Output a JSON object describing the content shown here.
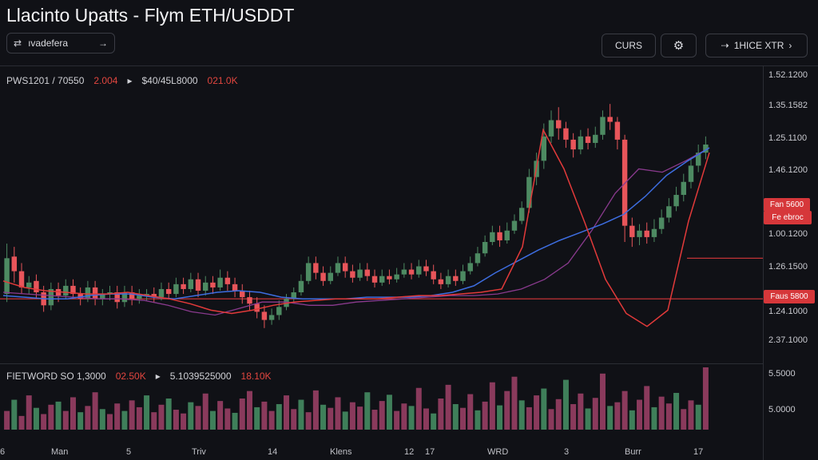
{
  "header": {
    "title": "Llacinto Upatts - Flym ETH/USDDT",
    "symbol_label": "ıvadefera",
    "symbol_icon": "exchange-icon",
    "curs_label": "CURS",
    "gear_icon": "gear-icon",
    "timeframe_label": "1HICE XTR",
    "timeframe_icon": "arrow-icon",
    "timeframe_chevron": "chevron-right-icon"
  },
  "main_legend": {
    "pair": "PWS1201 / 70550",
    "change": "2.004",
    "ohlc": "$40/45L8000",
    "delta": "021.0K"
  },
  "volume_legend": {
    "label": "FIETWORD SO 1,3000",
    "value1": "02.50K",
    "value2": "5.1039525000",
    "value3": "18.10K"
  },
  "price_axis": {
    "ticks": [
      "1.52.1200",
      "1.35.1582",
      "1.25.1100",
      "1.46.1200",
      "1.00.1200",
      "1.26.1500",
      "1.24.1000",
      "2.37.1000"
    ],
    "volume_ticks": [
      "5.5000",
      "5.0000"
    ]
  },
  "price_tags": {
    "upper": "Fan 5600",
    "upper2": "Fe ebroc",
    "lower": "Faus 5800"
  },
  "time_axis": {
    "labels": [
      "6",
      "Man",
      "5",
      "Triv",
      "14",
      "Klens",
      "12",
      "17",
      "WRD",
      "3",
      "Burr",
      "17"
    ]
  },
  "colors": {
    "up": "#4d8a62",
    "down": "#e8555a",
    "ma_blue": "#3d6de0",
    "ma_red": "#e23a3a",
    "ma_magenta": "#8a3a8e",
    "volume_up": "#3f7f5a",
    "volume_down": "#8a3a5c",
    "price_line": "#d6373a"
  },
  "chart_data": {
    "type": "candlestick",
    "candles_o_c_h_l": [
      [
        1.243,
        1.265,
        1.274,
        1.238
      ],
      [
        1.266,
        1.257,
        1.272,
        1.25
      ],
      [
        1.257,
        1.247,
        1.262,
        1.243
      ],
      [
        1.247,
        1.25,
        1.254,
        1.243
      ],
      [
        1.251,
        1.244,
        1.255,
        1.24
      ],
      [
        1.244,
        1.236,
        1.248,
        1.232
      ],
      [
        1.236,
        1.246,
        1.25,
        1.233
      ],
      [
        1.246,
        1.242,
        1.25,
        1.238
      ],
      [
        1.242,
        1.248,
        1.252,
        1.24
      ],
      [
        1.248,
        1.243,
        1.252,
        1.24
      ],
      [
        1.243,
        1.24,
        1.247,
        1.236
      ],
      [
        1.24,
        1.247,
        1.251,
        1.238
      ],
      [
        1.247,
        1.24,
        1.251,
        1.236
      ],
      [
        1.24,
        1.243,
        1.246,
        1.236
      ],
      [
        1.243,
        1.244,
        1.248,
        1.239
      ],
      [
        1.244,
        1.238,
        1.248,
        1.234
      ],
      [
        1.238,
        1.244,
        1.248,
        1.235
      ],
      [
        1.244,
        1.24,
        1.248,
        1.236
      ],
      [
        1.24,
        1.242,
        1.246,
        1.237
      ],
      [
        1.242,
        1.243,
        1.246,
        1.239
      ],
      [
        1.243,
        1.241,
        1.247,
        1.238
      ],
      [
        1.241,
        1.246,
        1.25,
        1.239
      ],
      [
        1.246,
        1.243,
        1.25,
        1.24
      ],
      [
        1.243,
        1.249,
        1.253,
        1.241
      ],
      [
        1.249,
        1.246,
        1.253,
        1.243
      ],
      [
        1.246,
        1.252,
        1.256,
        1.244
      ],
      [
        1.252,
        1.245,
        1.256,
        1.241
      ],
      [
        1.245,
        1.25,
        1.254,
        1.242
      ],
      [
        1.25,
        1.247,
        1.254,
        1.243
      ],
      [
        1.247,
        1.253,
        1.258,
        1.245
      ],
      [
        1.253,
        1.249,
        1.257,
        1.245
      ],
      [
        1.249,
        1.245,
        1.253,
        1.241
      ],
      [
        1.245,
        1.241,
        1.249,
        1.237
      ],
      [
        1.241,
        1.237,
        1.245,
        1.233
      ],
      [
        1.237,
        1.232,
        1.241,
        1.228
      ],
      [
        1.232,
        1.227,
        1.236,
        1.222
      ],
      [
        1.227,
        1.23,
        1.234,
        1.224
      ],
      [
        1.23,
        1.235,
        1.239,
        1.227
      ],
      [
        1.235,
        1.24,
        1.243,
        1.233
      ],
      [
        1.24,
        1.244,
        1.247,
        1.238
      ],
      [
        1.244,
        1.251,
        1.255,
        1.242
      ],
      [
        1.251,
        1.262,
        1.266,
        1.249
      ],
      [
        1.262,
        1.256,
        1.266,
        1.252
      ],
      [
        1.256,
        1.251,
        1.26,
        1.248
      ],
      [
        1.251,
        1.256,
        1.26,
        1.249
      ],
      [
        1.256,
        1.262,
        1.266,
        1.254
      ],
      [
        1.262,
        1.257,
        1.266,
        1.253
      ],
      [
        1.257,
        1.253,
        1.261,
        1.25
      ],
      [
        1.253,
        1.258,
        1.262,
        1.251
      ],
      [
        1.258,
        1.254,
        1.262,
        1.251
      ],
      [
        1.254,
        1.25,
        1.258,
        1.247
      ],
      [
        1.25,
        1.254,
        1.258,
        1.248
      ],
      [
        1.254,
        1.252,
        1.258,
        1.249
      ],
      [
        1.252,
        1.255,
        1.259,
        1.25
      ],
      [
        1.255,
        1.258,
        1.262,
        1.253
      ],
      [
        1.258,
        1.255,
        1.262,
        1.252
      ],
      [
        1.255,
        1.26,
        1.264,
        1.253
      ],
      [
        1.26,
        1.257,
        1.264,
        1.254
      ],
      [
        1.257,
        1.252,
        1.261,
        1.249
      ],
      [
        1.252,
        1.249,
        1.256,
        1.246
      ],
      [
        1.249,
        1.254,
        1.258,
        1.247
      ],
      [
        1.254,
        1.251,
        1.258,
        1.248
      ],
      [
        1.251,
        1.257,
        1.261,
        1.249
      ],
      [
        1.257,
        1.262,
        1.266,
        1.255
      ],
      [
        1.262,
        1.268,
        1.272,
        1.26
      ],
      [
        1.268,
        1.275,
        1.279,
        1.266
      ],
      [
        1.275,
        1.281,
        1.285,
        1.273
      ],
      [
        1.281,
        1.276,
        1.285,
        1.272
      ],
      [
        1.276,
        1.282,
        1.287,
        1.274
      ],
      [
        1.282,
        1.288,
        1.292,
        1.28
      ],
      [
        1.288,
        1.296,
        1.3,
        1.286
      ],
      [
        1.296,
        1.315,
        1.32,
        1.293
      ],
      [
        1.315,
        1.325,
        1.33,
        1.31
      ],
      [
        1.325,
        1.34,
        1.348,
        1.32
      ],
      [
        1.34,
        1.35,
        1.356,
        1.336
      ],
      [
        1.35,
        1.345,
        1.358,
        1.338
      ],
      [
        1.345,
        1.338,
        1.349,
        1.333
      ],
      [
        1.338,
        1.332,
        1.342,
        1.327
      ],
      [
        1.332,
        1.34,
        1.344,
        1.329
      ],
      [
        1.34,
        1.336,
        1.345,
        1.332
      ],
      [
        1.336,
        1.341,
        1.346,
        1.333
      ],
      [
        1.341,
        1.352,
        1.356,
        1.338
      ],
      [
        1.352,
        1.349,
        1.36,
        1.344
      ],
      [
        1.349,
        1.338,
        1.352,
        1.332
      ],
      [
        1.338,
        1.285,
        1.341,
        1.275
      ],
      [
        1.285,
        1.278,
        1.29,
        1.272
      ],
      [
        1.278,
        1.282,
        1.286,
        1.273
      ],
      [
        1.282,
        1.278,
        1.287,
        1.274
      ],
      [
        1.278,
        1.283,
        1.289,
        1.275
      ],
      [
        1.283,
        1.29,
        1.295,
        1.28
      ],
      [
        1.29,
        1.297,
        1.302,
        1.287
      ],
      [
        1.297,
        1.304,
        1.309,
        1.294
      ],
      [
        1.304,
        1.312,
        1.317,
        1.3
      ],
      [
        1.312,
        1.322,
        1.327,
        1.308
      ],
      [
        1.322,
        1.33,
        1.335,
        1.318
      ],
      [
        1.33,
        1.335,
        1.34,
        1.326
      ]
    ],
    "ma_blue": [
      1.242,
      1.241,
      1.24,
      1.24,
      1.242,
      1.243,
      1.243,
      1.241,
      1.24,
      1.242,
      1.244,
      1.245,
      1.244,
      1.241,
      1.24,
      1.24,
      1.24,
      1.241,
      1.241,
      1.241,
      1.242,
      1.244,
      1.248,
      1.256,
      1.263,
      1.27,
      1.276,
      1.281,
      1.286,
      1.292,
      1.303,
      1.316,
      1.325,
      1.333
    ],
    "ma_red": [
      1.251,
      1.247,
      1.245,
      1.244,
      1.243,
      1.243,
      1.244,
      1.242,
      1.24,
      1.237,
      1.233,
      1.231,
      1.233,
      1.236,
      1.238,
      1.239,
      1.24,
      1.24,
      1.24,
      1.241,
      1.242,
      1.242,
      1.243,
      1.244,
      1.246,
      1.272,
      1.344,
      1.32,
      1.287,
      1.252,
      1.231,
      1.223,
      1.233,
      1.288,
      1.33
    ],
    "ma_magenta": [
      1.244,
      1.243,
      1.242,
      1.241,
      1.24,
      1.24,
      1.239,
      1.236,
      1.232,
      1.23,
      1.234,
      1.238,
      1.238,
      1.236,
      1.236,
      1.238,
      1.239,
      1.24,
      1.241,
      1.242,
      1.242,
      1.243,
      1.246,
      1.252,
      1.262,
      1.282,
      1.305,
      1.32,
      1.318,
      1.325,
      1.333
    ],
    "volume": [
      0.3,
      0.48,
      0.22,
      0.55,
      0.35,
      0.25,
      0.4,
      0.45,
      0.3,
      0.52,
      0.28,
      0.38,
      0.6,
      0.33,
      0.25,
      0.42,
      0.3,
      0.47,
      0.36,
      0.55,
      0.28,
      0.4,
      0.5,
      0.32,
      0.26,
      0.44,
      0.38,
      0.58,
      0.3,
      0.46,
      0.34,
      0.27,
      0.5,
      0.62,
      0.36,
      0.45,
      0.3,
      0.41,
      0.55,
      0.33,
      0.48,
      0.28,
      0.63,
      0.4,
      0.35,
      0.52,
      0.29,
      0.44,
      0.37,
      0.6,
      0.32,
      0.46,
      0.56,
      0.3,
      0.42,
      0.38,
      0.67,
      0.34,
      0.26,
      0.5,
      0.72,
      0.41,
      0.35,
      0.57,
      0.31,
      0.45,
      0.76,
      0.39,
      0.62,
      0.85,
      0.47,
      0.36,
      0.55,
      0.66,
      0.33,
      0.49,
      0.8,
      0.41,
      0.58,
      0.34,
      0.51,
      0.9,
      0.38,
      0.44,
      0.62,
      0.31,
      0.48,
      0.7,
      0.36,
      0.53,
      0.42,
      0.59,
      0.33,
      0.47,
      0.4,
      1.0
    ],
    "price_line_upper": 1.265,
    "price_line_lower": 1.24
  }
}
